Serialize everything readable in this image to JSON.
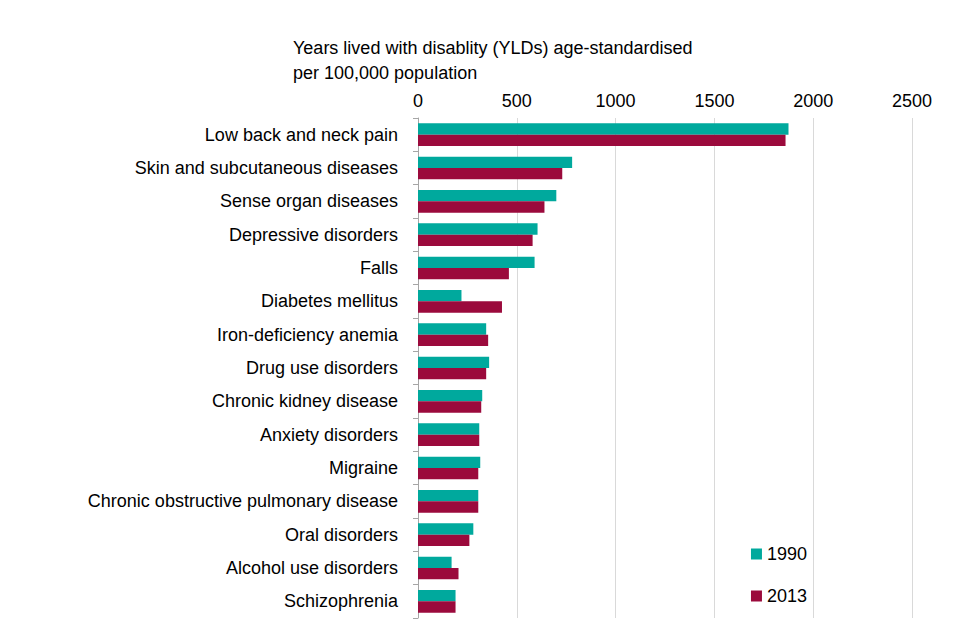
{
  "chart_data": {
    "type": "bar",
    "orientation": "horizontal",
    "title": "Years lived with disablity (YLDs) age-standardised\nper 100,000 population",
    "categories": [
      "Low back and neck pain",
      "Skin and subcutaneous diseases",
      "Sense organ diseases",
      "Depressive disorders",
      "Falls",
      "Diabetes mellitus",
      "Iron-deficiency anemia",
      "Drug use disorders",
      "Chronic kidney disease",
      "Anxiety disorders",
      "Migraine",
      "Chronic obstructive pulmonary disease",
      "Oral disorders",
      "Alcohol use disorders",
      "Schizophrenia"
    ],
    "series": [
      {
        "name": "1990",
        "color": "#00a99d",
        "values": [
          1875,
          780,
          700,
          605,
          590,
          220,
          345,
          360,
          325,
          310,
          315,
          305,
          280,
          170,
          190
        ]
      },
      {
        "name": "2013",
        "color": "#9b0a3c",
        "values": [
          1860,
          730,
          640,
          580,
          460,
          425,
          355,
          345,
          320,
          310,
          305,
          305,
          260,
          205,
          190
        ]
      }
    ],
    "xlim": [
      0,
      2500
    ],
    "xticks": [
      0,
      500,
      1000,
      1500,
      2000,
      2500
    ],
    "grid": true,
    "legend": "lower right"
  }
}
